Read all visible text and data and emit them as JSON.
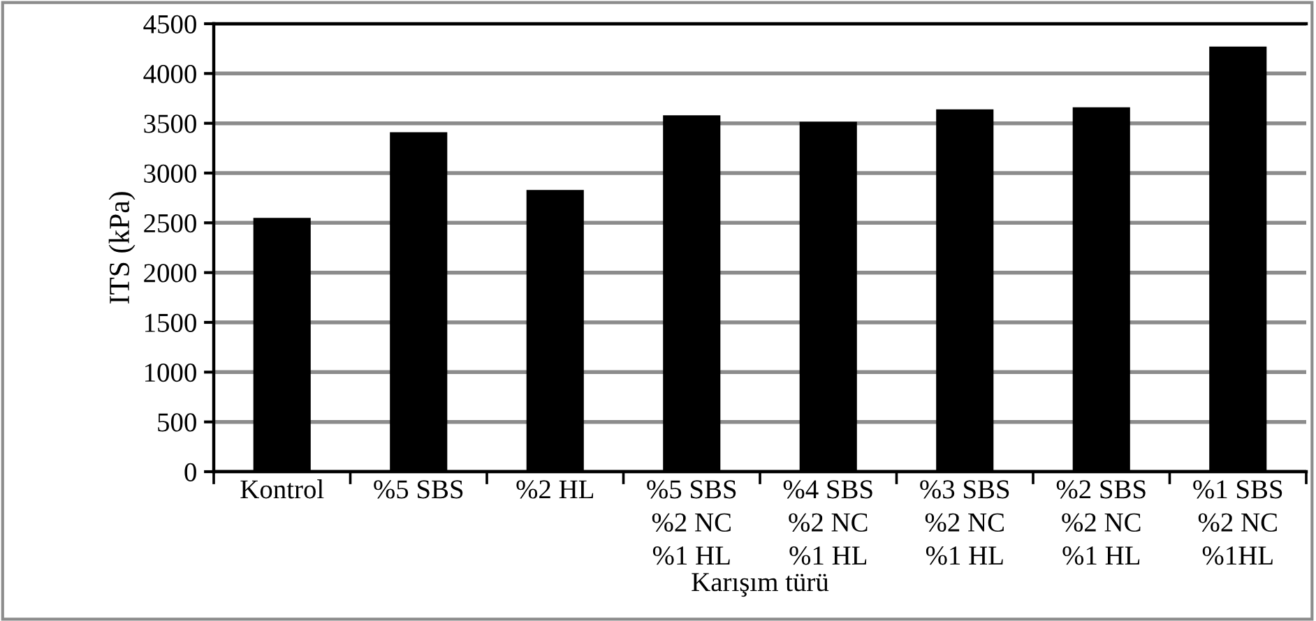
{
  "chart_data": {
    "type": "bar",
    "xlabel": "Karışım türü",
    "ylabel": "ITS (kPa)",
    "categories": [
      "Kontrol",
      "%5 SBS",
      "%2 HL",
      "%5 SBS\n%2 NC\n%1 HL",
      "%4 SBS\n%2 NC\n%1 HL",
      "%3 SBS\n%2 NC\n%1 HL",
      "%2 SBS\n%2 NC\n%1 HL",
      "%1 SBS\n%2 NC\n%1HL"
    ],
    "values": [
      2550,
      3410,
      2830,
      3580,
      3515,
      3640,
      3660,
      4270
    ],
    "color": "#000000",
    "ylim": [
      0,
      4500
    ],
    "yticks": [
      0,
      500,
      1000,
      1500,
      2000,
      2500,
      3000,
      3500,
      4000,
      4500
    ],
    "grid": "y"
  }
}
